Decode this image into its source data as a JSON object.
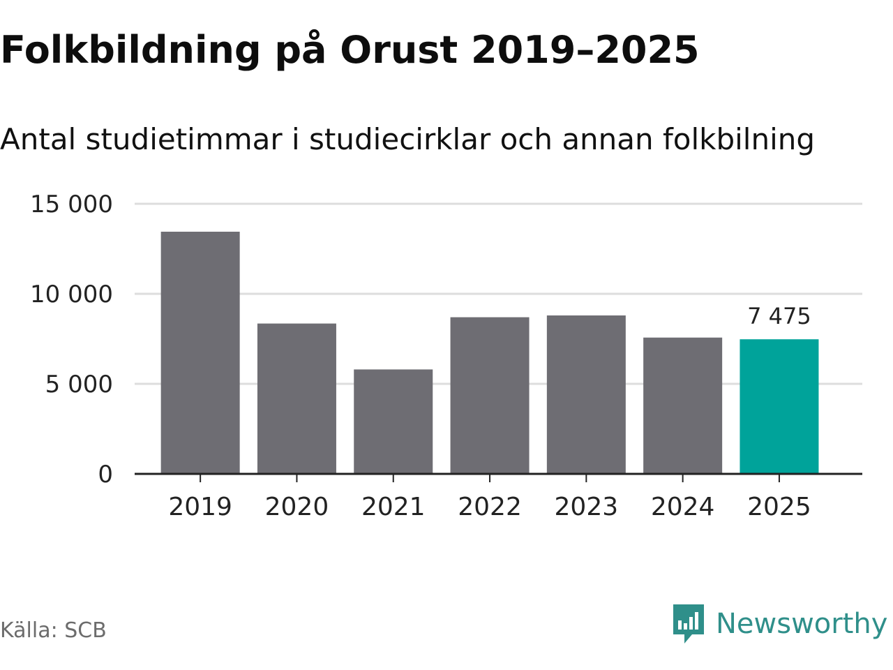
{
  "header": {
    "title": "Folkbildning på Orust 2019–2025",
    "subtitle": "Antal studietimmar i studiecirklar och annan folkbilning"
  },
  "footer": {
    "source": "Källa: SCB",
    "brand_name": "Newsworthy",
    "brand_icon": "newsworthy-logo-icon"
  },
  "colors": {
    "bar_default": "#6e6d73",
    "bar_highlight": "#00a39a",
    "gridline": "#dddddd",
    "axis": "#222222",
    "brand": "#2f8f8a"
  },
  "chart_data": {
    "type": "bar",
    "categories": [
      "2019",
      "2020",
      "2021",
      "2022",
      "2023",
      "2024",
      "2025"
    ],
    "values": [
      13450,
      8350,
      5800,
      8700,
      8800,
      7570,
      7475
    ],
    "highlight_index": 6,
    "data_labels": [
      {
        "index": 6,
        "text": "7 475"
      }
    ],
    "ylim": [
      0,
      15000
    ],
    "yticks": [
      0,
      5000,
      10000,
      15000
    ],
    "ytick_labels": [
      "0",
      "5 000",
      "10 000",
      "15 000"
    ],
    "grid": true,
    "xlabel": "",
    "ylabel": ""
  }
}
